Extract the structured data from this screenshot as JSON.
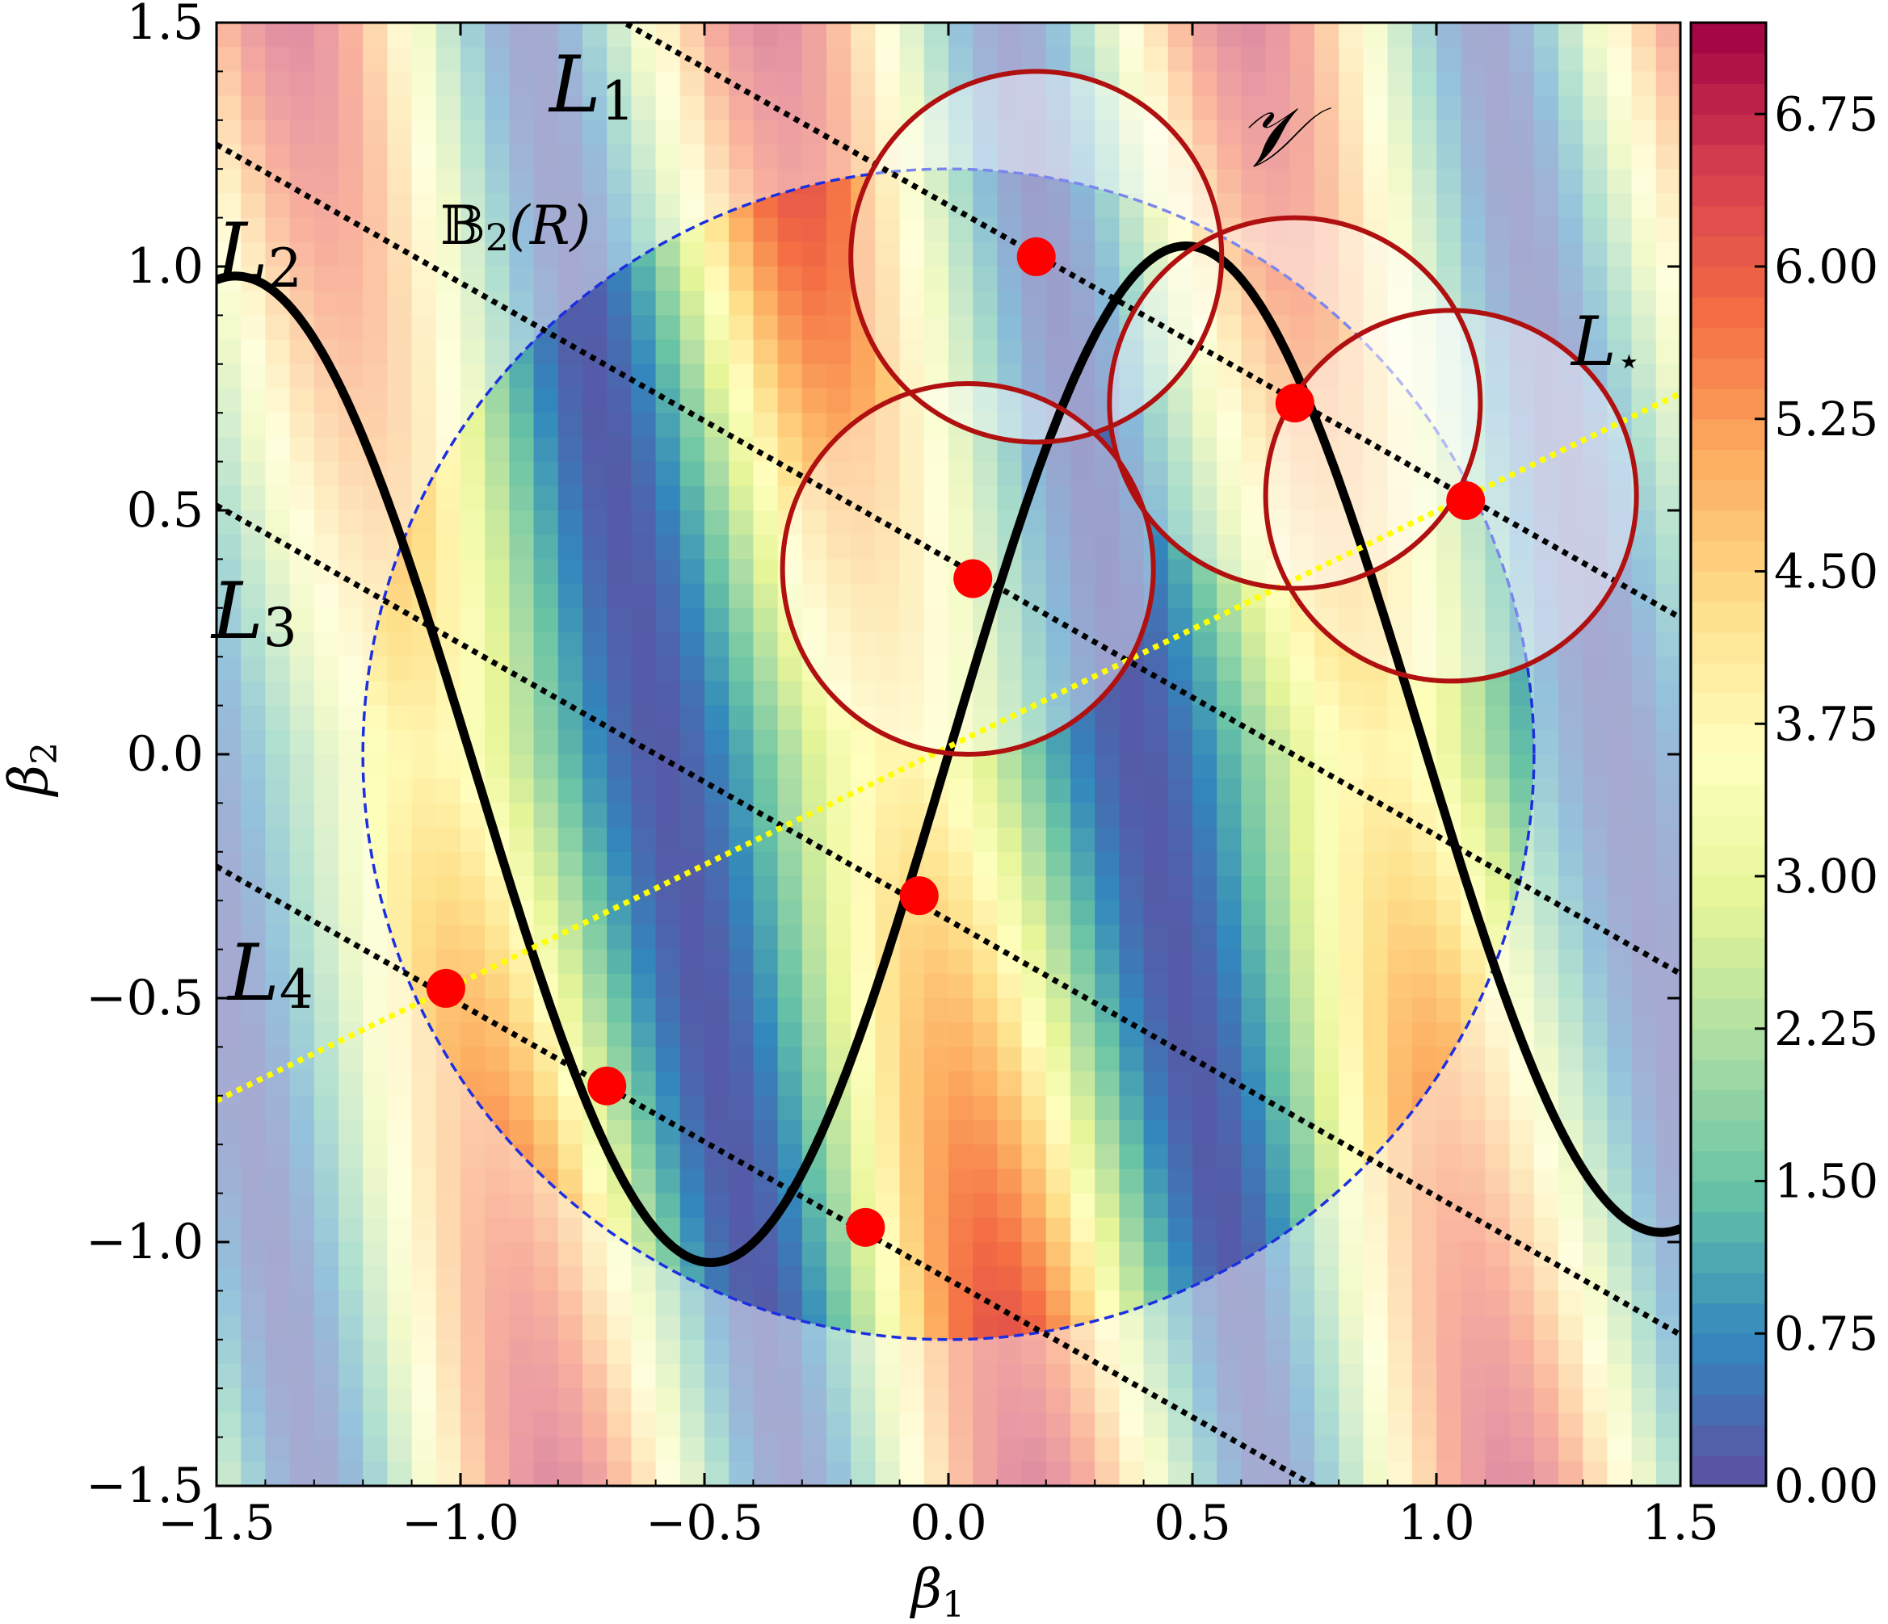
{
  "chart_data": {
    "type": "heatmap",
    "xlabel": "β",
    "xlabel_sub": "1",
    "ylabel": "β",
    "ylabel_sub": "2",
    "xlim": [
      -1.5,
      1.5
    ],
    "ylim": [
      -1.5,
      1.5
    ],
    "x_ticks": [
      -1.5,
      -1.0,
      -0.5,
      0.0,
      0.5,
      1.0,
      1.5
    ],
    "x_tick_labels": [
      "−1.5",
      "−1.0",
      "−0.5",
      "0.0",
      "0.5",
      "1.0",
      "1.5"
    ],
    "y_ticks": [
      -1.5,
      -1.0,
      -0.5,
      0.0,
      0.5,
      1.0,
      1.5
    ],
    "y_tick_labels": [
      "−1.5",
      "−1.0",
      "−0.5",
      "0.0",
      "0.5",
      "1.0",
      "1.5"
    ],
    "colorbar": {
      "range": [
        0,
        7.2
      ],
      "ticks": [
        0.0,
        0.75,
        1.5,
        2.25,
        3.0,
        3.75,
        4.5,
        5.25,
        6.0,
        6.75
      ],
      "tick_labels": [
        "0.00",
        "0.75",
        "1.50",
        "2.25",
        "3.00",
        "3.75",
        "4.50",
        "5.25",
        "6.00",
        "6.75"
      ],
      "colormap": [
        "#5e4fa2",
        "#3288bd",
        "#66c2a5",
        "#abdda4",
        "#e6f598",
        "#ffffbf",
        "#fee08b",
        "#fdae61",
        "#f46d43",
        "#d53e4f",
        "#9e0142"
      ]
    },
    "ball": {
      "center": [
        0,
        0
      ],
      "radius": 1.2,
      "label_main": "𝔹",
      "label_rest": "(R)",
      "label_sub": "2",
      "color": "#1c2fe0"
    },
    "manifold": {
      "label": "𝒱",
      "color": "#000000"
    },
    "lines": [
      {
        "label": "L",
        "sub": "1",
        "points": [
          [
            -0.7,
            1.52
          ],
          [
            1.5,
            0.28
          ]
        ],
        "color": "#000000",
        "style": "dotted"
      },
      {
        "label": "L",
        "sub": "2",
        "points": [
          [
            -1.5,
            1.25
          ],
          [
            1.5,
            -0.45
          ]
        ],
        "color": "#000000",
        "style": "dotted"
      },
      {
        "label": "L",
        "sub": "3",
        "points": [
          [
            -1.5,
            0.51
          ],
          [
            1.5,
            -1.19
          ]
        ],
        "color": "#000000",
        "style": "dotted"
      },
      {
        "label": "L",
        "sub": "4",
        "points": [
          [
            -1.5,
            -0.23
          ],
          [
            0.75,
            -1.5
          ]
        ],
        "color": "#000000",
        "style": "dotted"
      },
      {
        "label": "L",
        "sub": "⋆",
        "points": [
          [
            -1.5,
            -0.71
          ],
          [
            1.5,
            0.74
          ]
        ],
        "color": "#ffff00",
        "style": "dotted"
      }
    ],
    "points": [
      [
        0.18,
        1.02
      ],
      [
        0.71,
        0.72
      ],
      [
        1.06,
        0.52
      ],
      [
        0.05,
        0.36
      ],
      [
        -0.06,
        -0.29
      ],
      [
        -1.03,
        -0.48
      ],
      [
        -0.7,
        -0.68
      ],
      [
        -0.17,
        -0.97
      ]
    ],
    "point_color": "#ff0000",
    "neighborhoods": [
      {
        "center": [
          0.18,
          1.02
        ],
        "radius": 0.38
      },
      {
        "center": [
          0.71,
          0.72
        ],
        "radius": 0.38
      },
      {
        "center": [
          1.03,
          0.53
        ],
        "radius": 0.38
      },
      {
        "center": [
          0.04,
          0.38
        ],
        "radius": 0.38
      }
    ],
    "neighborhood_color": "#b01010"
  }
}
